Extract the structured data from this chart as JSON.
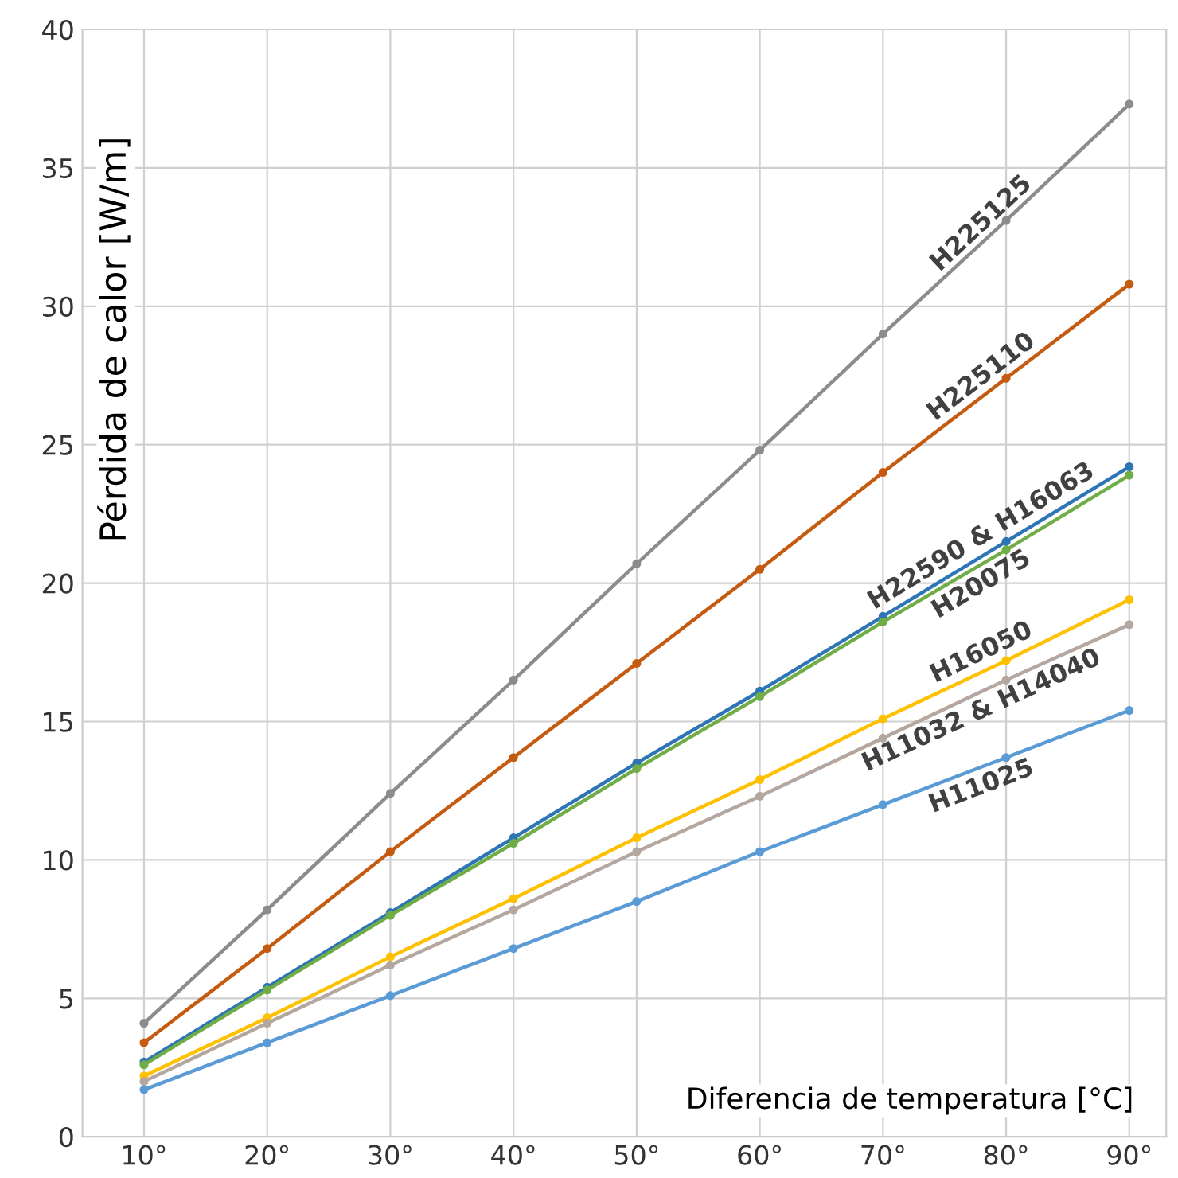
{
  "chart_data": {
    "type": "line",
    "xlabel": "Diferencia de temperatura [°C]",
    "ylabel": "Pérdida de calor [W/m]",
    "x": [
      10,
      20,
      30,
      40,
      50,
      60,
      70,
      80,
      90
    ],
    "xlim": [
      5,
      93
    ],
    "ylim": [
      0,
      40
    ],
    "xticks": [
      {
        "value": 10,
        "label": "10°"
      },
      {
        "value": 20,
        "label": "20°"
      },
      {
        "value": 30,
        "label": "30°"
      },
      {
        "value": 40,
        "label": "40°"
      },
      {
        "value": 50,
        "label": "50°"
      },
      {
        "value": 60,
        "label": "60°"
      },
      {
        "value": 70,
        "label": "70°"
      },
      {
        "value": 80,
        "label": "80°"
      },
      {
        "value": 90,
        "label": "90°"
      }
    ],
    "yticks": [
      0,
      5,
      10,
      15,
      20,
      25,
      30,
      35,
      40
    ],
    "grid": true,
    "marker": "circle",
    "line_style": "solid",
    "legend": false,
    "series": [
      {
        "name": "H225125",
        "color": "#8c8c8c",
        "values": [
          4.1,
          8.2,
          12.4,
          16.5,
          20.7,
          24.8,
          29.0,
          33.1,
          37.3
        ]
      },
      {
        "name": "H225110",
        "color": "#c55a11",
        "values": [
          3.4,
          6.8,
          10.3,
          13.7,
          17.1,
          20.5,
          24.0,
          27.4,
          30.8
        ]
      },
      {
        "name": "H22590 & H16063",
        "color": "#2e75b6",
        "values": [
          2.7,
          5.4,
          8.1,
          10.8,
          13.5,
          16.1,
          18.8,
          21.5,
          24.2
        ]
      },
      {
        "name": "H20075",
        "color": "#70ad47",
        "values": [
          2.6,
          5.3,
          8.0,
          10.6,
          13.3,
          15.9,
          18.6,
          21.2,
          23.9
        ]
      },
      {
        "name": "H16050",
        "color": "#ffc000",
        "values": [
          2.2,
          4.3,
          6.5,
          8.6,
          10.8,
          12.9,
          15.1,
          17.2,
          19.4
        ]
      },
      {
        "name": "H11032 & H14040",
        "color": "#b4a7a0",
        "values": [
          2.0,
          4.1,
          6.2,
          8.2,
          10.3,
          12.3,
          14.4,
          16.5,
          18.5
        ]
      },
      {
        "name": "H11025",
        "color": "#5b9bd5",
        "values": [
          1.7,
          3.4,
          5.1,
          6.8,
          8.5,
          10.3,
          12.0,
          13.7,
          15.4
        ]
      }
    ]
  }
}
